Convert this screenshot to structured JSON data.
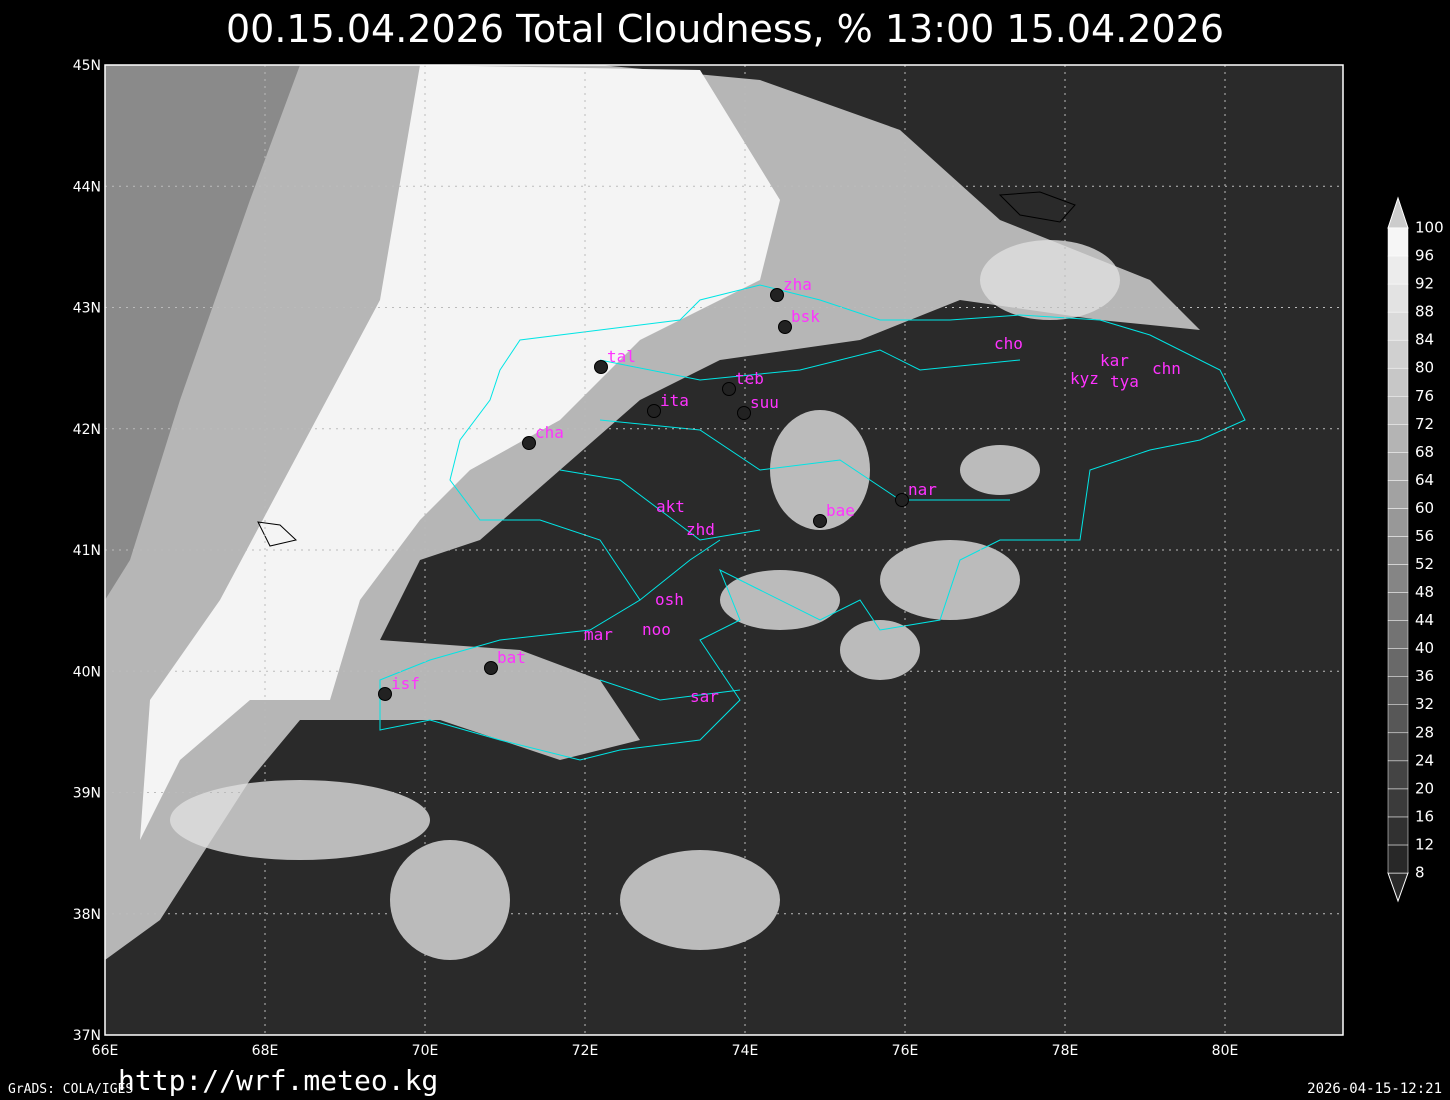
{
  "header": {
    "title": "00.15.04.2026 Total Cloudness, % 13:00 15.04.2026"
  },
  "map": {
    "lon_labels": [
      "66E",
      "68E",
      "70E",
      "72E",
      "74E",
      "76E",
      "78E",
      "80E"
    ],
    "lat_labels": [
      "37N",
      "38N",
      "39N",
      "40N",
      "41N",
      "42N",
      "43N",
      "44N",
      "45N"
    ],
    "stations": [
      "zha",
      "bsk",
      "tal",
      "teb",
      "ita",
      "suu",
      "cha",
      "cho",
      "kar",
      "kyz",
      "tya",
      "chn",
      "nar",
      "bae",
      "akt",
      "zhd",
      "osh",
      "noo",
      "mar",
      "bat",
      "isf",
      "sar"
    ]
  },
  "colorbar": {
    "levels": [
      8,
      12,
      16,
      20,
      24,
      28,
      32,
      36,
      40,
      44,
      48,
      52,
      56,
      60,
      64,
      68,
      72,
      76,
      80,
      84,
      88,
      92,
      96,
      100
    ]
  },
  "footer": {
    "credit": "GrADS: COLA/IGES",
    "url": "http://wrf.meteo.kg",
    "timestamp": "2026-04-15-12:21"
  }
}
